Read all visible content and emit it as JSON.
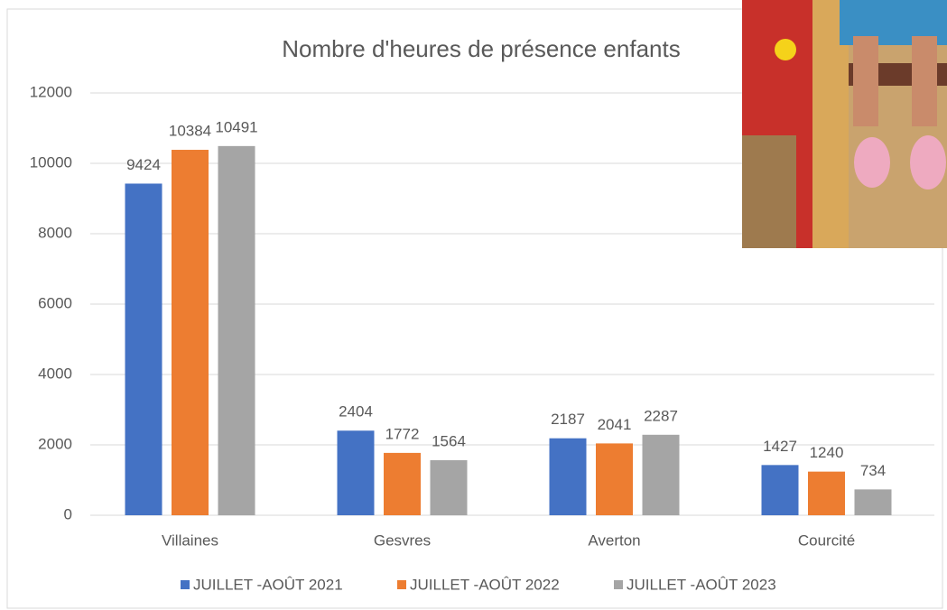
{
  "chart_data": {
    "type": "bar",
    "title": "Nombre d'heures de présence enfants",
    "categories": [
      "Villaines",
      "Gesvres",
      "Averton",
      "Courcité"
    ],
    "series": [
      {
        "name": "JUILLET -AOÛT 2021",
        "color": "#4472c4",
        "values": [
          9424,
          2404,
          2187,
          1427
        ]
      },
      {
        "name": "JUILLET -AOÛT 2022",
        "color": "#ed7d31",
        "values": [
          10384,
          1772,
          2041,
          1240
        ]
      },
      {
        "name": "JUILLET -AOÛT 2023",
        "color": "#a5a5a5",
        "values": [
          10491,
          1564,
          2287,
          734
        ]
      }
    ],
    "ylim": [
      0,
      12000
    ],
    "yticks": [
      0,
      2000,
      4000,
      6000,
      8000,
      10000,
      12000
    ],
    "grid": true,
    "legend": "bottom"
  }
}
